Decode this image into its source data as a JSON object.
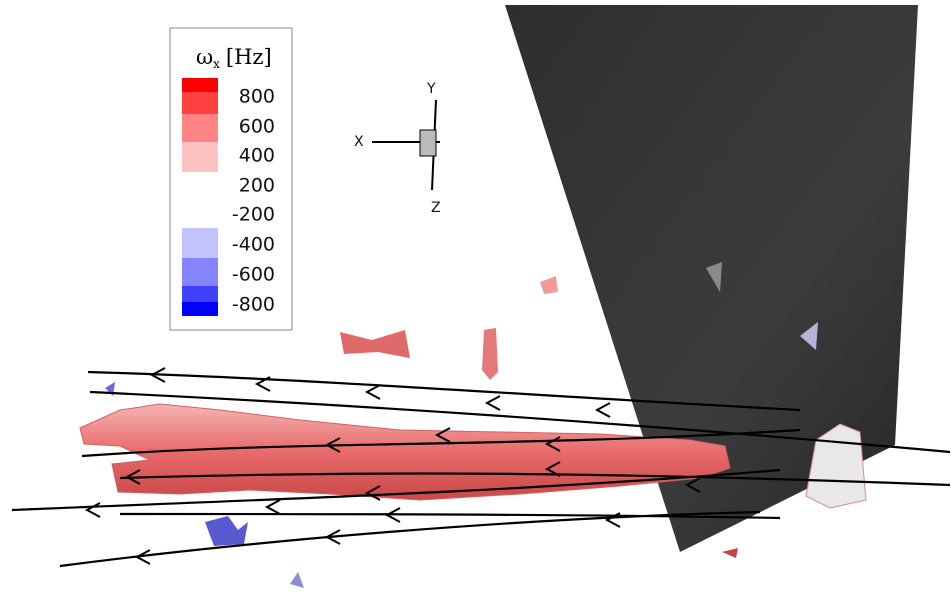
{
  "legend": {
    "symbol": "ω",
    "subscript": "x",
    "unit": "[Hz]",
    "labels": [
      "800",
      "600",
      "400",
      "200",
      "-200",
      "-400",
      "-600",
      "-800"
    ]
  },
  "axes_triad": {
    "x": "X",
    "y": "Y",
    "z": "Z"
  }
}
